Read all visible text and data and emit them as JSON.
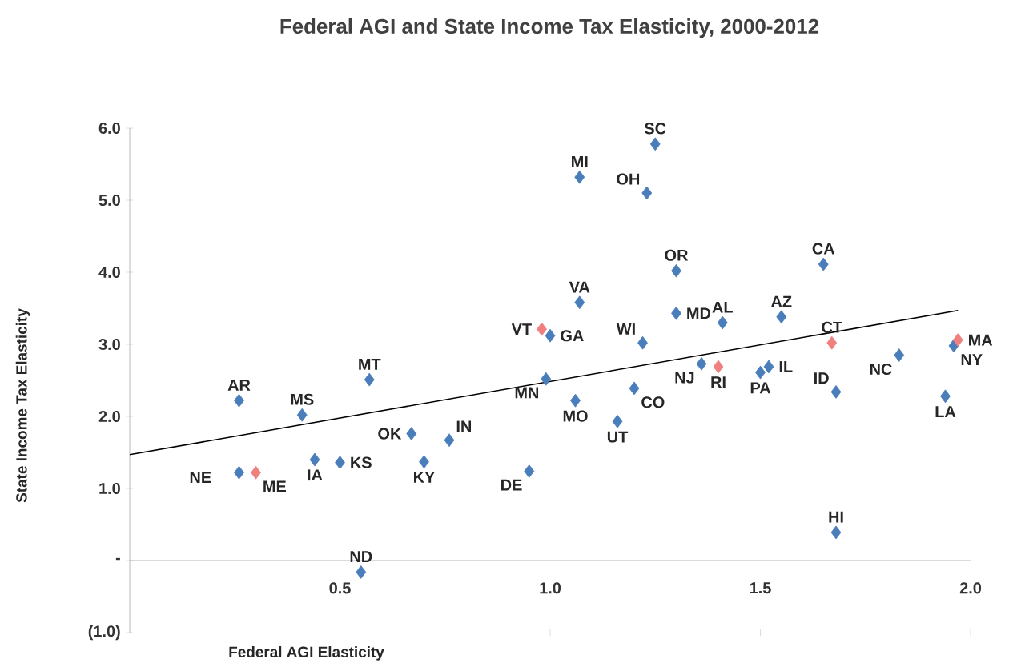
{
  "chart_data": {
    "type": "scatter",
    "title": "Federal AGI and State Income Tax Elasticity, 2000-2012",
    "xlabel": "Federal AGI Elasticity",
    "ylabel": "State Income Tax Elasticity",
    "xlim": [
      0,
      2.0
    ],
    "ylim": [
      -1.0,
      6.0
    ],
    "xticks": [
      {
        "value": 0.5,
        "label": "0.5"
      },
      {
        "value": 1.0,
        "label": "1.0"
      },
      {
        "value": 1.5,
        "label": "1.5"
      },
      {
        "value": 2.0,
        "label": "2.0"
      }
    ],
    "yticks": [
      {
        "value": -1.0,
        "label": "(1.0)"
      },
      {
        "value": 0,
        "label": "-"
      },
      {
        "value": 1.0,
        "label": "1.0"
      },
      {
        "value": 2.0,
        "label": "2.0"
      },
      {
        "value": 3.0,
        "label": "3.0"
      },
      {
        "value": 4.0,
        "label": "4.0"
      },
      {
        "value": 5.0,
        "label": "5.0"
      },
      {
        "value": 6.0,
        "label": "6.0"
      }
    ],
    "marker": "diamond",
    "grid": false,
    "series": [
      {
        "color": "#4a7ebb",
        "x": [
          0.26,
          0.26,
          0.41,
          0.44,
          0.5,
          0.57,
          0.55,
          0.67,
          0.7,
          0.76,
          0.95,
          1.0,
          0.99,
          1.06,
          1.07,
          1.07,
          1.25,
          1.23,
          1.16,
          1.2,
          1.22,
          1.3,
          1.3,
          1.36,
          1.41,
          1.5,
          1.52,
          1.55,
          1.65,
          1.68,
          1.68,
          1.83,
          1.94,
          1.96
        ],
        "values": [
          2.22,
          1.22,
          2.02,
          1.4,
          1.36,
          2.51,
          -0.16,
          1.76,
          1.37,
          1.67,
          1.24,
          3.12,
          2.52,
          2.22,
          3.58,
          5.32,
          5.78,
          5.1,
          1.93,
          2.39,
          3.02,
          4.02,
          3.43,
          2.73,
          3.3,
          2.61,
          2.69,
          3.38,
          4.11,
          2.34,
          0.39,
          2.85,
          2.28,
          2.98
        ]
      },
      {
        "color": "#f08080",
        "x": [
          0.3,
          0.98,
          1.4,
          1.67,
          1.97
        ],
        "values": [
          1.22,
          3.21,
          2.69,
          3.02,
          3.06
        ]
      },
      {
        "type": "line",
        "color": "#000000",
        "line_style": "solid",
        "marker": "none",
        "x": [
          0,
          1.97
        ],
        "values": [
          1.47,
          3.47
        ]
      }
    ],
    "annotations": [
      {
        "text": "AR",
        "x": 0.26,
        "y": 2.22
      },
      {
        "text": "NE",
        "x": 0.26,
        "y": 1.22
      },
      {
        "text": "MS",
        "x": 0.41,
        "y": 2.02
      },
      {
        "text": "IA",
        "x": 0.44,
        "y": 1.4
      },
      {
        "text": "KS",
        "x": 0.5,
        "y": 1.36
      },
      {
        "text": "MT",
        "x": 0.57,
        "y": 2.51
      },
      {
        "text": "ND",
        "x": 0.55,
        "y": -0.16
      },
      {
        "text": "OK",
        "x": 0.67,
        "y": 1.76
      },
      {
        "text": "KY",
        "x": 0.7,
        "y": 1.37
      },
      {
        "text": "IN",
        "x": 0.76,
        "y": 1.67
      },
      {
        "text": "DE",
        "x": 0.95,
        "y": 1.24
      },
      {
        "text": "GA",
        "x": 1.0,
        "y": 3.12
      },
      {
        "text": "MN",
        "x": 0.99,
        "y": 2.52
      },
      {
        "text": "MO",
        "x": 1.06,
        "y": 2.22
      },
      {
        "text": "VA",
        "x": 1.07,
        "y": 3.58
      },
      {
        "text": "MI",
        "x": 1.07,
        "y": 5.32
      },
      {
        "text": "SC",
        "x": 1.25,
        "y": 5.78
      },
      {
        "text": "OH",
        "x": 1.23,
        "y": 5.1
      },
      {
        "text": "UT",
        "x": 1.16,
        "y": 1.93
      },
      {
        "text": "CO",
        "x": 1.2,
        "y": 2.39
      },
      {
        "text": "WI",
        "x": 1.22,
        "y": 3.02
      },
      {
        "text": "OR",
        "x": 1.3,
        "y": 4.02
      },
      {
        "text": "MD",
        "x": 1.3,
        "y": 3.43
      },
      {
        "text": "NJ",
        "x": 1.36,
        "y": 2.73
      },
      {
        "text": "AL",
        "x": 1.41,
        "y": 3.3
      },
      {
        "text": "PA",
        "x": 1.5,
        "y": 2.61
      },
      {
        "text": "IL",
        "x": 1.52,
        "y": 2.69
      },
      {
        "text": "AZ",
        "x": 1.55,
        "y": 3.38
      },
      {
        "text": "CA",
        "x": 1.65,
        "y": 4.11
      },
      {
        "text": "ID",
        "x": 1.68,
        "y": 2.34
      },
      {
        "text": "HI",
        "x": 1.68,
        "y": 0.39
      },
      {
        "text": "NC",
        "x": 1.83,
        "y": 2.85
      },
      {
        "text": "LA",
        "x": 1.94,
        "y": 2.28
      },
      {
        "text": "NY",
        "x": 1.96,
        "y": 2.98
      },
      {
        "text": "ME",
        "x": 0.3,
        "y": 1.22
      },
      {
        "text": "VT",
        "x": 0.98,
        "y": 3.21
      },
      {
        "text": "RI",
        "x": 1.4,
        "y": 2.69
      },
      {
        "text": "CT",
        "x": 1.67,
        "y": 3.02
      },
      {
        "text": "MA",
        "x": 1.97,
        "y": 3.06
      }
    ]
  }
}
